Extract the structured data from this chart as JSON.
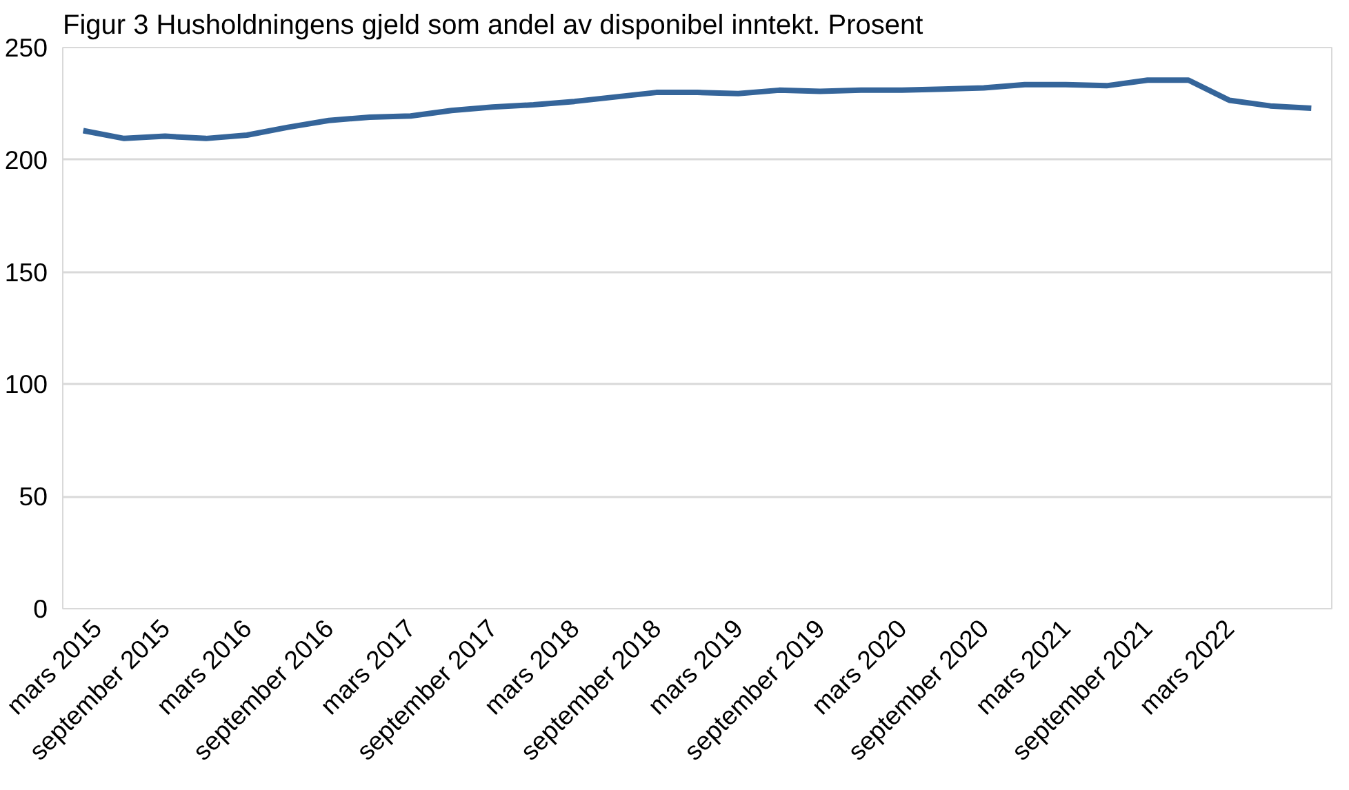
{
  "chart_data": {
    "type": "line",
    "title": "Figur 3 Husholdningens gjeld som andel av disponibel inntekt. Prosent",
    "categories": [
      "mars 2015",
      null,
      "september 2015",
      null,
      "mars 2016",
      null,
      "september 2016",
      null,
      "mars 2017",
      null,
      "september 2017",
      null,
      "mars 2018",
      null,
      "september 2018",
      null,
      "mars 2019",
      null,
      "september 2019",
      null,
      "mars 2020",
      null,
      "september 2020",
      null,
      "mars 2021",
      null,
      "september 2021",
      null,
      "mars 2022",
      null,
      null
    ],
    "series": [
      {
        "color": "#35659a",
        "values": [
          213,
          209.5,
          210.5,
          209.5,
          211,
          214.5,
          217.5,
          219,
          219.5,
          222,
          223.5,
          224.5,
          226,
          228,
          230,
          230,
          229.5,
          231,
          230.5,
          231,
          231,
          231.5,
          232,
          233.5,
          233.5,
          233,
          235.5,
          235.5,
          226.5,
          224,
          223
        ]
      }
    ],
    "ylim": [
      0,
      250
    ],
    "yticks": [
      0,
      50,
      100,
      150,
      200,
      250
    ],
    "grid": "y",
    "line_style": "solid",
    "marker": "none"
  }
}
